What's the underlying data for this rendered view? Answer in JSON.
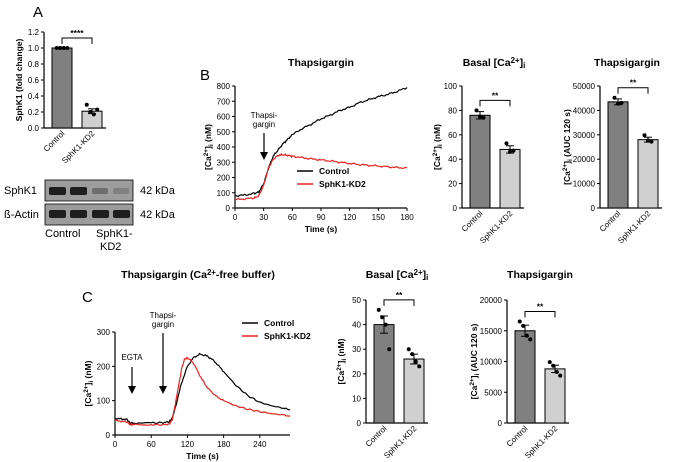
{
  "panels": {
    "A": "A",
    "B": "B",
    "C": "C"
  },
  "legend": {
    "control": "Control",
    "kd": "SphK1-KD2"
  },
  "colors": {
    "control": "#000000",
    "kd": "#e8231f",
    "bar_control": "#808080",
    "bar_kd": "#d0d0d0",
    "sig": "#000000"
  },
  "annotations": {
    "thapsigargin_top": "Thapsi-",
    "thapsigargin_bottom": "gargin",
    "egta": "EGTA"
  },
  "blot": {
    "rows": [
      "SphK1",
      "ß-Actin"
    ],
    "kda": [
      "42 kDa",
      "42 kDa"
    ],
    "lanes": [
      "Control",
      "SphK1-",
      "KD2"
    ]
  },
  "chart_data": [
    {
      "id": "A_bar",
      "type": "bar",
      "title": "",
      "ylabel": "SphK1 (fold change)",
      "categories": [
        "Control",
        "SphK1-KD2"
      ],
      "values": [
        1.0,
        0.21
      ],
      "sem": [
        0.0,
        0.03
      ],
      "points": [
        [
          1.0,
          1.0,
          1.0,
          1.0
        ],
        [
          0.29,
          0.2,
          0.17,
          0.23
        ]
      ],
      "ylim": [
        0,
        1.2
      ],
      "yticks": [
        "0.0",
        "0.2",
        "0.4",
        "0.6",
        "0.8",
        "1.0",
        "1.2"
      ],
      "significance": "****"
    },
    {
      "id": "B_trace",
      "type": "line",
      "title": "Thapsigargin",
      "xlabel": "Time (s)",
      "ylabel": "[Ca2+]i (nM)",
      "xlim": [
        0,
        180
      ],
      "ylim": [
        0,
        800
      ],
      "xticks": [
        "0",
        "30",
        "60",
        "90",
        "120",
        "150",
        "180"
      ],
      "yticks": [
        "0",
        "100",
        "200",
        "300",
        "400",
        "500",
        "600",
        "700",
        "800"
      ],
      "series": [
        {
          "name": "Control",
          "x": [
            0,
            10,
            20,
            25,
            30,
            35,
            40,
            45,
            50,
            55,
            60,
            70,
            80,
            90,
            100,
            110,
            120,
            130,
            140,
            150,
            160,
            170,
            180
          ],
          "values": [
            80,
            85,
            95,
            105,
            160,
            260,
            340,
            380,
            420,
            450,
            480,
            520,
            550,
            585,
            610,
            640,
            660,
            690,
            710,
            730,
            745,
            765,
            790
          ]
        },
        {
          "name": "SphK1-KD2",
          "x": [
            0,
            10,
            20,
            25,
            30,
            35,
            40,
            45,
            50,
            55,
            60,
            70,
            80,
            90,
            100,
            110,
            120,
            130,
            140,
            150,
            160,
            170,
            180
          ],
          "values": [
            55,
            60,
            65,
            80,
            150,
            260,
            320,
            345,
            350,
            345,
            340,
            330,
            322,
            315,
            308,
            300,
            292,
            285,
            280,
            275,
            270,
            265,
            262
          ]
        }
      ]
    },
    {
      "id": "B_basal",
      "type": "bar",
      "title": "Basal [Ca2+]i",
      "ylabel": "[Ca2+]i (nM)",
      "categories": [
        "Control",
        "SphK1-KD2"
      ],
      "values": [
        76,
        48
      ],
      "sem": [
        3,
        3
      ],
      "points": [
        [
          80,
          75,
          74
        ],
        [
          53,
          46,
          47
        ]
      ],
      "ylim": [
        0,
        100
      ],
      "yticks": [
        "0",
        "20",
        "40",
        "60",
        "80",
        "100"
      ],
      "significance": "**"
    },
    {
      "id": "B_auc",
      "type": "bar",
      "title": "Thapsigargin",
      "ylabel": "[Ca2+]i (AUC 120 s)",
      "categories": [
        "Control",
        "SphK1-KD2"
      ],
      "values": [
        43500,
        28000
      ],
      "sem": [
        1200,
        1000
      ],
      "points": [
        [
          45200,
          42800,
          43100
        ],
        [
          29800,
          27600,
          27200
        ]
      ],
      "ylim": [
        0,
        50000
      ],
      "yticks": [
        "0",
        "10000",
        "20000",
        "30000",
        "40000",
        "50000"
      ],
      "significance": "**"
    },
    {
      "id": "C_trace",
      "type": "line",
      "title": "Thapsigargin (Ca2+-free buffer)",
      "xlabel": "Time (s)",
      "ylabel": "[Ca2+]i (nM)",
      "xlim": [
        0,
        290
      ],
      "ylim": [
        0,
        300
      ],
      "xticks": [
        "0",
        "60",
        "120",
        "180",
        "240"
      ],
      "yticks": [
        "0",
        "100",
        "200",
        "300"
      ],
      "series": [
        {
          "name": "Control",
          "x": [
            0,
            10,
            20,
            25,
            30,
            60,
            80,
            90,
            95,
            100,
            110,
            120,
            130,
            140,
            150,
            160,
            170,
            180,
            200,
            220,
            240,
            260,
            280,
            290
          ],
          "values": [
            48,
            47,
            45,
            35,
            35,
            35,
            36,
            38,
            50,
            80,
            150,
            200,
            225,
            235,
            232,
            222,
            205,
            185,
            145,
            115,
            95,
            85,
            78,
            73
          ]
        },
        {
          "name": "SphK1-KD2",
          "x": [
            0,
            10,
            20,
            25,
            30,
            60,
            80,
            90,
            95,
            100,
            110,
            115,
            120,
            130,
            140,
            150,
            160,
            170,
            180,
            200,
            220,
            240,
            260,
            280,
            290
          ],
          "values": [
            42,
            40,
            38,
            30,
            30,
            30,
            30,
            32,
            45,
            90,
            190,
            220,
            225,
            210,
            175,
            145,
            125,
            110,
            100,
            85,
            75,
            68,
            62,
            58,
            55
          ]
        }
      ]
    },
    {
      "id": "C_basal",
      "type": "bar",
      "title": "Basal [Ca2+]i",
      "ylabel": "[Ca2+]i (nM)",
      "categories": [
        "Control",
        "SphK1-KD2"
      ],
      "values": [
        40,
        26
      ],
      "sem": [
        3.5,
        2
      ],
      "points": [
        [
          46,
          43,
          40,
          30
        ],
        [
          30,
          28,
          25,
          23
        ]
      ],
      "ylim": [
        0,
        50
      ],
      "yticks": [
        "0",
        "10",
        "20",
        "30",
        "40",
        "50"
      ],
      "significance": "**"
    },
    {
      "id": "C_auc",
      "type": "bar",
      "title": "Thapsigargin",
      "ylabel": "[Ca2+]i (AUC 120 s)",
      "categories": [
        "Control",
        "SphK1-KD2"
      ],
      "values": [
        15000,
        8800
      ],
      "sem": [
        900,
        600
      ],
      "points": [
        [
          16500,
          15800,
          14200,
          13600
        ],
        [
          9900,
          9300,
          8300,
          7700
        ]
      ],
      "ylim": [
        0,
        20000
      ],
      "yticks": [
        "0",
        "5000",
        "10000",
        "15000",
        "20000"
      ],
      "significance": "**"
    }
  ]
}
